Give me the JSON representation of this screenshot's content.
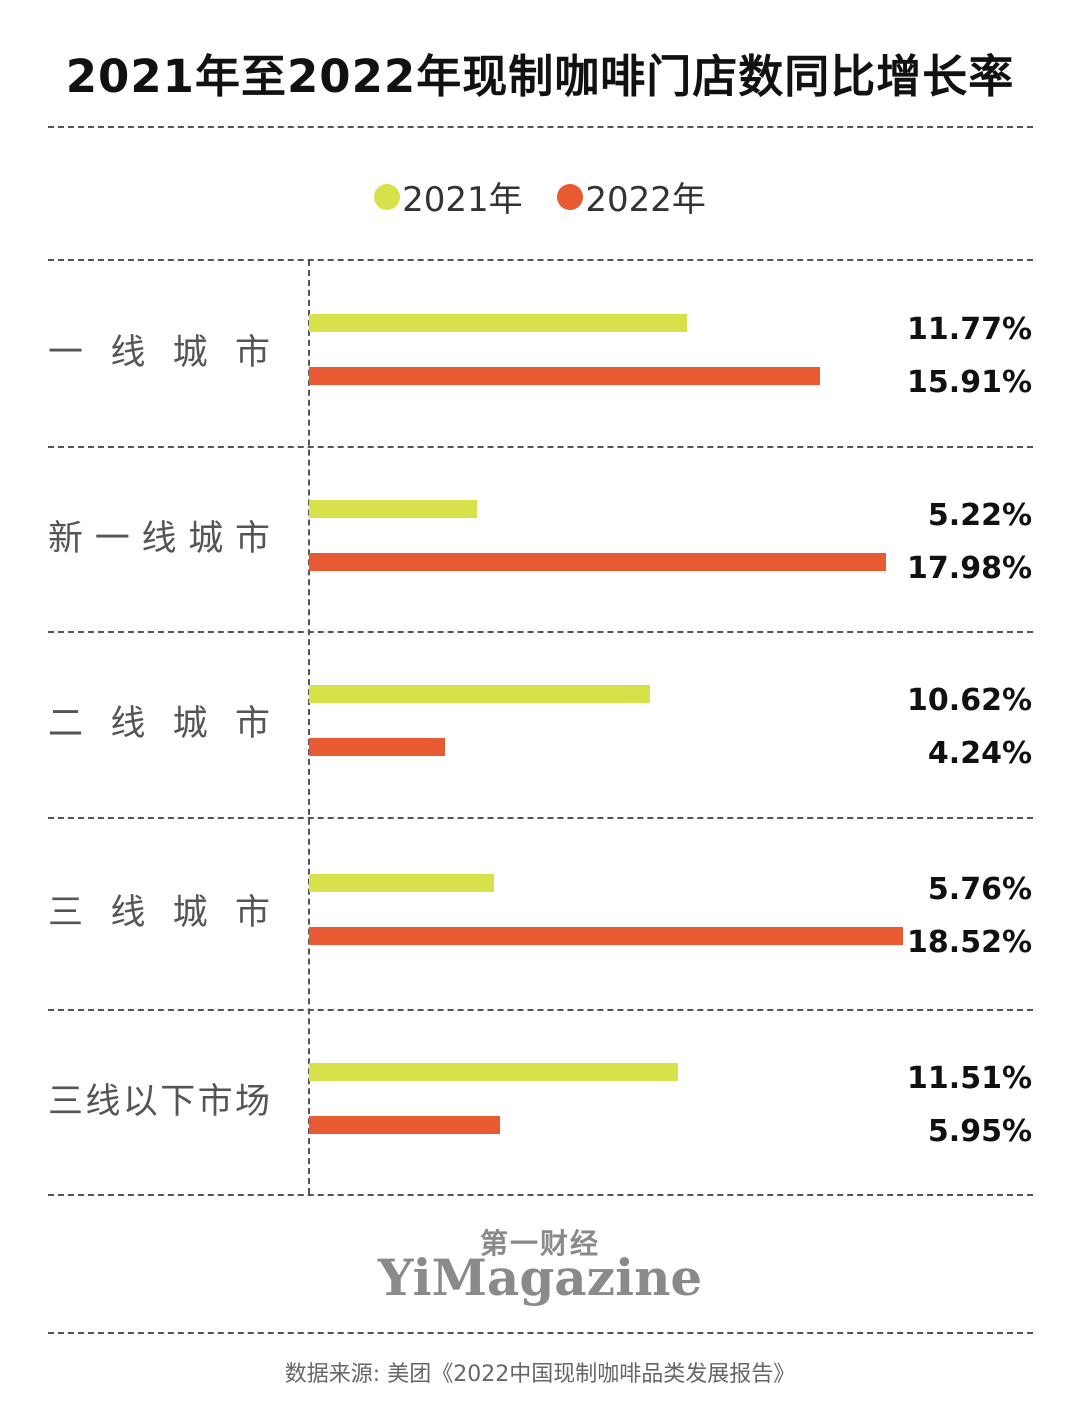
{
  "title": "2021年至2022年现制咖啡门店数同比增长率",
  "legend": [
    {
      "label": "2021年",
      "color": "#d7e24a"
    },
    {
      "label": "2022年",
      "color": "#e85a32"
    }
  ],
  "chart_data": {
    "type": "bar",
    "orientation": "horizontal",
    "title": "2021年至2022年现制咖啡门店数同比增长率",
    "categories": [
      "一线城市",
      "新一线城市",
      "二线城市",
      "三线城市",
      "三线以下市场"
    ],
    "category_labels": [
      "一 线 城 市",
      "新一线城市",
      "二 线 城 市",
      "三 线 城 市",
      "三线以下市场"
    ],
    "series": [
      {
        "name": "2021年",
        "color": "#d7e24a",
        "values": [
          11.77,
          5.22,
          10.62,
          5.76,
          11.51
        ],
        "labels": [
          "11.77%",
          "5.22%",
          "10.62%",
          "5.76%",
          "11.51%"
        ]
      },
      {
        "name": "2022年",
        "color": "#e85a32",
        "values": [
          15.91,
          17.98,
          4.24,
          18.52,
          5.95
        ],
        "labels": [
          "15.91%",
          "17.98%",
          "4.24%",
          "18.52%",
          "5.95%"
        ]
      }
    ],
    "grid": false,
    "legend_position": "top-center"
  },
  "brand": {
    "cn": "第一财经",
    "en": "YiMagazine"
  },
  "source": "数据来源: 美团《2022中国现制咖啡品类发展报告》"
}
